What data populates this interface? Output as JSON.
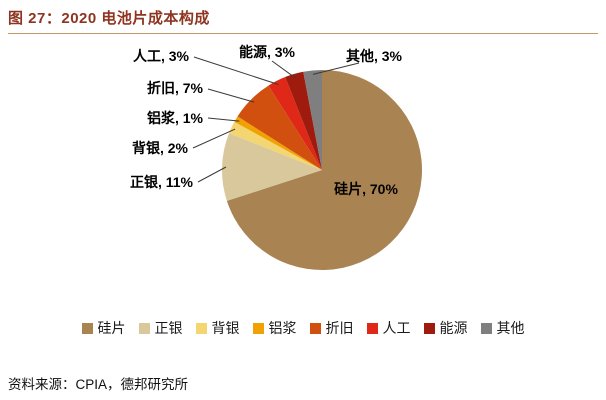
{
  "figure": {
    "title": "图 27：2020 电池片成本构成",
    "source": "资料来源：CPIA，德邦研究所"
  },
  "chart_data": {
    "type": "pie",
    "title": "2020 电池片成本构成",
    "categories": [
      "硅片",
      "正银",
      "背银",
      "铝浆",
      "折旧",
      "人工",
      "能源",
      "其他"
    ],
    "values": [
      70,
      11,
      2,
      1,
      7,
      3,
      3,
      3
    ],
    "unit": "%",
    "colors": [
      "#AA8352",
      "#D9C89C",
      "#F3D672",
      "#F0A202",
      "#D2500F",
      "#DF2817",
      "#9E1B0E",
      "#7F7F7F"
    ],
    "start_angle_deg": 0,
    "direction": "clockwise",
    "label_format": "{name}, {value}%",
    "legend_position": "bottom",
    "label_color": "#000000"
  },
  "style": {
    "title_color": "#8E3421",
    "divider_color": "#C49A68",
    "leader_line_color": "#3a3a3a",
    "background": "#FFFFFF"
  }
}
